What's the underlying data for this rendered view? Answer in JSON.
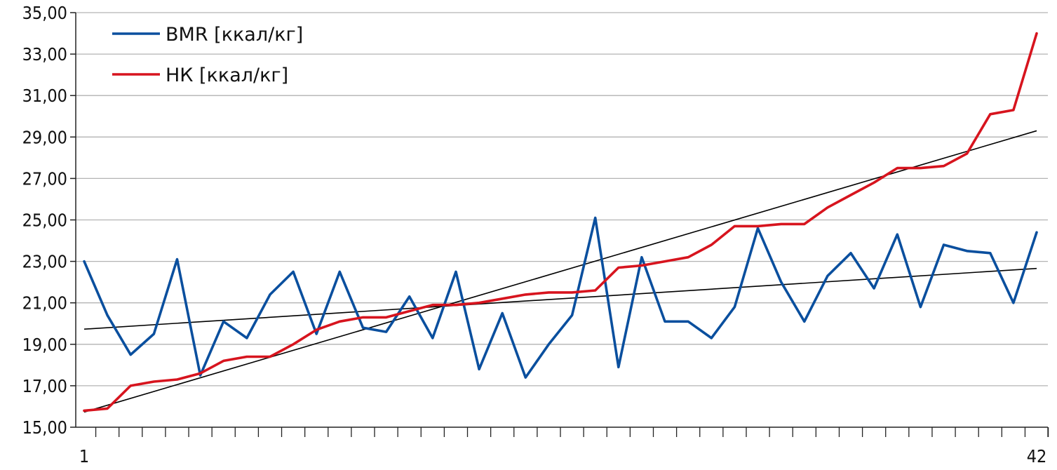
{
  "chart_data": {
    "type": "line",
    "title": "",
    "xlabel": "",
    "ylabel": "",
    "xlim": [
      1,
      42
    ],
    "ylim": [
      15,
      35
    ],
    "y_ticks": [
      15,
      17,
      19,
      21,
      23,
      25,
      27,
      29,
      31,
      33,
      35
    ],
    "y_tick_labels": [
      "15,00",
      "17,00",
      "19,00",
      "21,00",
      "23,00",
      "25,00",
      "27,00",
      "29,00",
      "31,00",
      "33,00",
      "35,00"
    ],
    "x_tick_labels": [
      {
        "x": 1,
        "label": "1"
      },
      {
        "x": 42,
        "label": "42"
      }
    ],
    "grid": "horizontal",
    "legend_position": "top-left",
    "x": [
      1,
      2,
      3,
      4,
      5,
      6,
      7,
      8,
      9,
      10,
      11,
      12,
      13,
      14,
      15,
      16,
      17,
      18,
      19,
      20,
      21,
      22,
      23,
      24,
      25,
      26,
      27,
      28,
      29,
      30,
      31,
      32,
      33,
      34,
      35,
      36,
      37,
      38,
      39,
      40,
      41,
      42
    ],
    "series": [
      {
        "name": "BMR [ккал/кг]",
        "color": "#0a4f9e",
        "values": [
          23.0,
          20.4,
          18.5,
          19.5,
          23.1,
          17.5,
          20.1,
          19.3,
          21.4,
          22.5,
          19.5,
          22.5,
          19.8,
          19.6,
          21.3,
          19.3,
          22.5,
          17.8,
          20.5,
          17.4,
          19.0,
          20.4,
          25.1,
          17.9,
          23.2,
          20.1,
          20.1,
          19.3,
          20.8,
          24.6,
          22.0,
          20.1,
          22.3,
          23.4,
          21.7,
          24.3,
          20.8,
          23.8,
          23.5,
          23.4,
          21.0,
          24.4
        ]
      },
      {
        "name": "НК [ккал/кг]",
        "color": "#d7141e",
        "values": [
          15.8,
          15.9,
          17.0,
          17.2,
          17.3,
          17.6,
          18.2,
          18.4,
          18.4,
          19.0,
          19.7,
          20.1,
          20.3,
          20.3,
          20.6,
          20.9,
          20.9,
          21.0,
          21.2,
          21.4,
          21.5,
          21.5,
          21.6,
          22.7,
          22.8,
          23.0,
          23.2,
          23.8,
          24.7,
          24.7,
          24.8,
          24.8,
          25.6,
          26.2,
          26.8,
          27.5,
          27.5,
          27.6,
          28.2,
          30.1,
          30.3,
          34.0
        ]
      }
    ],
    "trendlines": [
      {
        "series": "BMR [ккал/кг]",
        "color": "#000000",
        "start": [
          1,
          19.73
        ],
        "end": [
          42,
          22.66
        ]
      },
      {
        "series": "НК [ккал/кг]",
        "color": "#000000",
        "start": [
          1,
          15.73
        ],
        "end": [
          42,
          29.3
        ]
      }
    ]
  }
}
